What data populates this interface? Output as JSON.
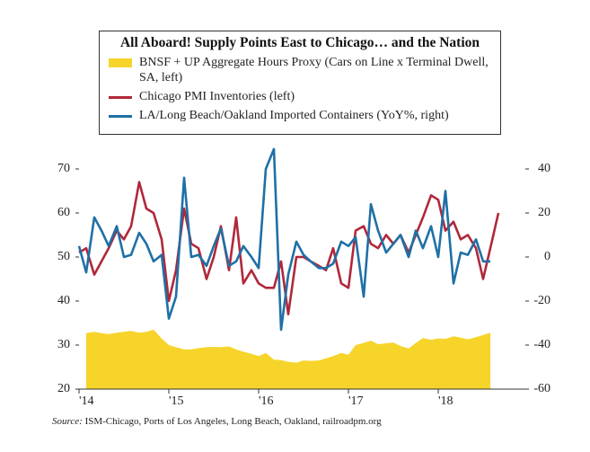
{
  "chart_data": {
    "type": "line",
    "title": "All Aboard! Supply Points East to Chicago… and the Nation",
    "source_label": "Source:",
    "source": "ISM-Chicago, Ports of Los Angeles, Long Beach, Oakland, railroadpm.org",
    "x": [
      2014,
      2014.08,
      2014.17,
      2014.25,
      2014.33,
      2014.42,
      2014.5,
      2014.58,
      2014.67,
      2014.75,
      2014.83,
      2014.92,
      2015,
      2015.08,
      2015.17,
      2015.25,
      2015.33,
      2015.42,
      2015.5,
      2015.58,
      2015.67,
      2015.75,
      2015.83,
      2015.92,
      2016,
      2016.08,
      2016.17,
      2016.25,
      2016.33,
      2016.42,
      2016.5,
      2016.58,
      2016.67,
      2016.75,
      2016.83,
      2016.92,
      2017,
      2017.08,
      2017.17,
      2017.25,
      2017.33,
      2017.42,
      2017.5,
      2017.58,
      2017.67,
      2017.75,
      2017.83,
      2017.92,
      2018,
      2018.08,
      2018.17,
      2018.25,
      2018.33,
      2018.42,
      2018.5,
      2018.58,
      2018.67
    ],
    "xlim": [
      2014,
      2018.97
    ],
    "xticks": [
      {
        "value": 2014,
        "label": "'14"
      },
      {
        "value": 2015,
        "label": "'15"
      },
      {
        "value": 2016,
        "label": "'16"
      },
      {
        "value": 2017,
        "label": "'17"
      },
      {
        "value": 2018,
        "label": "'18"
      }
    ],
    "ylim": [
      20,
      70
    ],
    "yticks": [
      20,
      30,
      40,
      50,
      60,
      70
    ],
    "y2lim": [
      -60,
      40
    ],
    "y2ticks": [
      -60,
      -40,
      -20,
      0,
      20,
      40
    ],
    "series": [
      {
        "name": "BNSF + UP Aggregate Hours Proxy (Cars on Line x Terminal Dwell, SA, left)",
        "type": "area",
        "color": "#f6d42a",
        "values": [
          null,
          32.7,
          33,
          32.7,
          32.5,
          32.8,
          33,
          33.2,
          32.8,
          33,
          33.5,
          31.5,
          30,
          29.5,
          29,
          29,
          29.3,
          29.5,
          29.6,
          29.5,
          29.7,
          29,
          28.5,
          28,
          27.5,
          28.2,
          26.7,
          26.6,
          26.2,
          26,
          26.5,
          26.4,
          26.5,
          27,
          27.5,
          28.2,
          27.8,
          30,
          30.5,
          31,
          30.2,
          30.4,
          30.6,
          29.8,
          29.2,
          30.5,
          31.6,
          31.2,
          31.5,
          31.4,
          32,
          31.7,
          31.3,
          31.8,
          32.3,
          32.8,
          null
        ]
      },
      {
        "name": "Chicago PMI Inventories (left)",
        "color": "#b0283a",
        "values": [
          51,
          52,
          46,
          49,
          52,
          56,
          54,
          57,
          67,
          61,
          60,
          54,
          40,
          47,
          61,
          53,
          52,
          45,
          50,
          57,
          47,
          59,
          44,
          47,
          44,
          43,
          43,
          49,
          37,
          50,
          50,
          49,
          48,
          47,
          52,
          44,
          43,
          56,
          57,
          53,
          52,
          55,
          53,
          55,
          51,
          55,
          59,
          64,
          63,
          56,
          58,
          54,
          55,
          52,
          45,
          52,
          60
        ]
      },
      {
        "name": "LA/Long Beach/Oakland Imported Containers (YoY%, right)",
        "color": "#1f70a6",
        "axis": "y2",
        "values": [
          5,
          -7,
          18,
          12,
          5,
          14,
          0,
          1,
          11,
          6,
          -2,
          1,
          -28,
          -18,
          36,
          0,
          1,
          -4,
          5,
          13,
          -4,
          -2,
          5,
          0,
          -5,
          40,
          49,
          -33,
          -8,
          7,
          1,
          -2,
          -5,
          -5,
          -3,
          7,
          5,
          9,
          -18,
          24,
          12,
          2,
          6,
          10,
          0,
          12,
          4,
          14,
          0,
          30,
          -12,
          2,
          1,
          8,
          -2,
          -2,
          null
        ]
      }
    ]
  }
}
